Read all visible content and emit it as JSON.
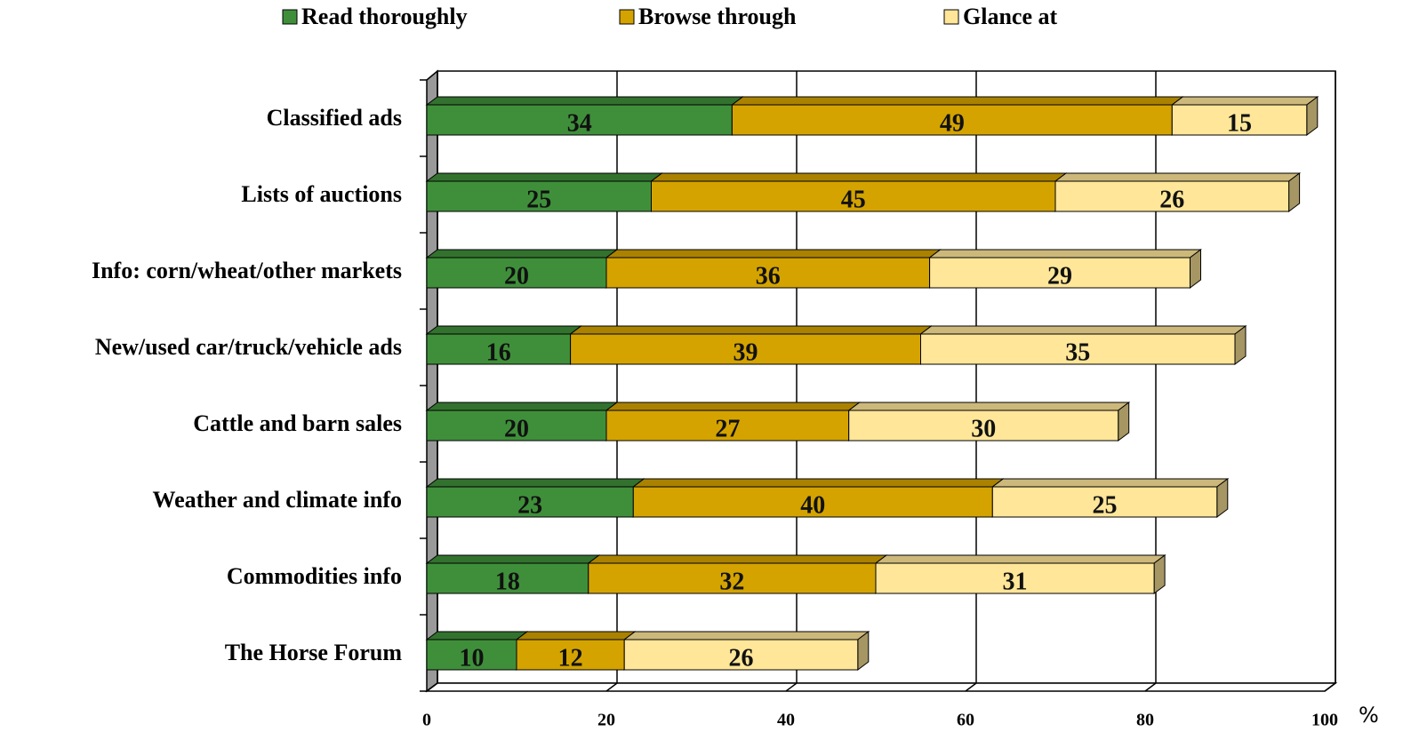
{
  "chart_data": {
    "type": "bar",
    "orientation": "horizontal",
    "stacked": true,
    "categories": [
      "Classified ads",
      "Lists of  auctions",
      "Info: corn/wheat/other markets",
      "New/used car/truck/vehicle ads",
      "Cattle and barn sales",
      "Weather and climate info",
      "Commodities info",
      "The Horse Forum"
    ],
    "series": [
      {
        "name": "Read thoroughly",
        "color": "#3f8f3a",
        "values": [
          34,
          25,
          20,
          16,
          20,
          23,
          18,
          10
        ]
      },
      {
        "name": "Browse through",
        "color": "#d4a300",
        "values": [
          49,
          45,
          36,
          39,
          27,
          40,
          32,
          12
        ]
      },
      {
        "name": "Glance at",
        "color": "#ffe699",
        "values": [
          15,
          26,
          29,
          35,
          30,
          25,
          31,
          26
        ]
      }
    ],
    "xlim": [
      0,
      100
    ],
    "xticks": [
      0,
      20,
      40,
      60,
      80,
      100
    ],
    "xlabel": "%",
    "grid": true,
    "legend": "top"
  }
}
